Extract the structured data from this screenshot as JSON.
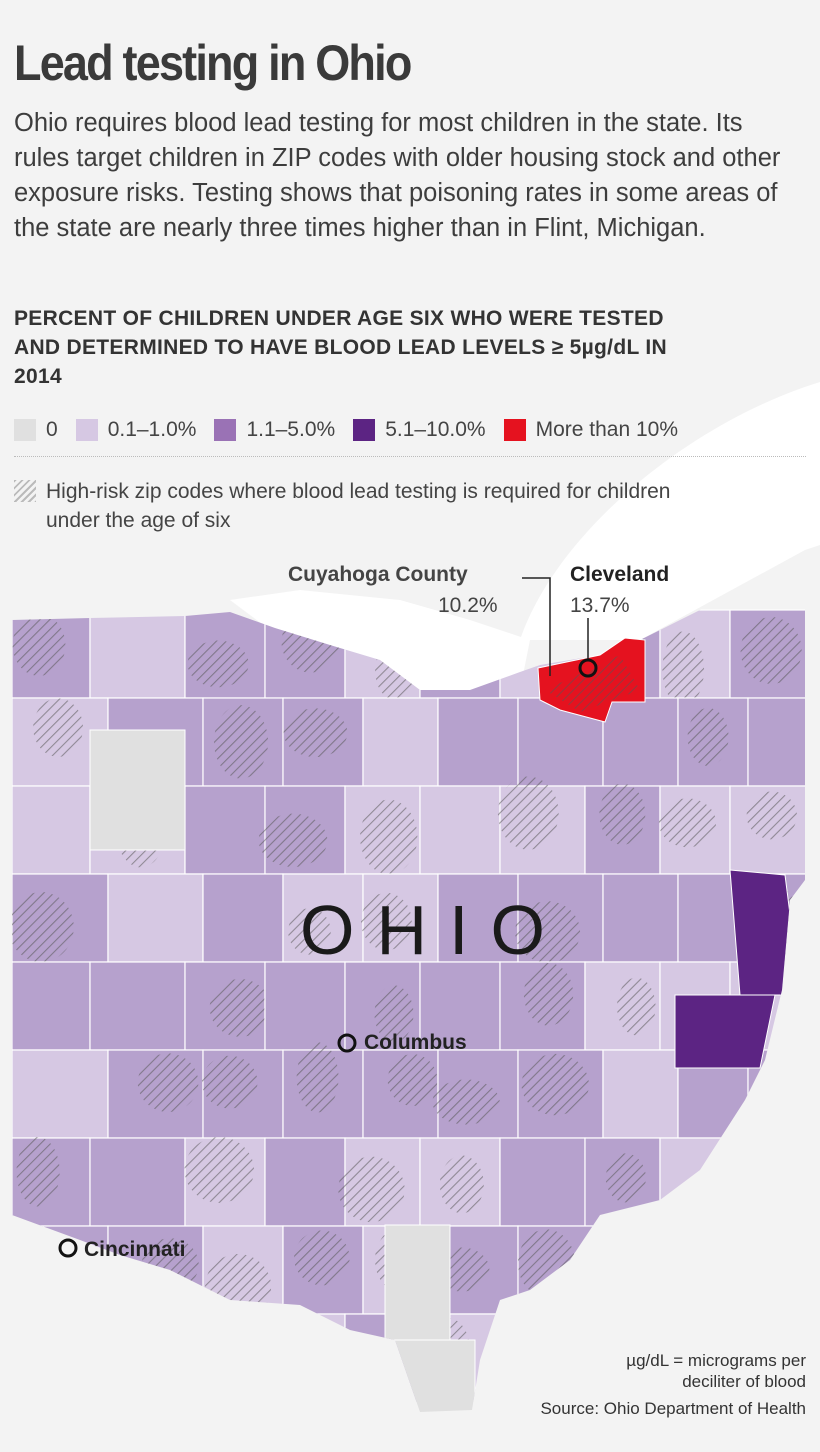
{
  "title": "Lead testing in Ohio",
  "intro": "Ohio requires blood lead testing for most children in the state. Its rules target children in ZIP codes with older housing stock and other exposure risks. Testing shows that poisoning rates in some areas of the state are nearly three times higher than in Flint, Michigan.",
  "subhead": "PERCENT OF CHILDREN UNDER AGE SIX WHO WERE TESTED AND DETERMINED TO HAVE BLOOD LEAD LEVELS ≥ 5µg/dL IN 2014",
  "legend": {
    "categories": [
      {
        "label": "0",
        "color": "#e0e0e0"
      },
      {
        "label": "0.1–1.0%",
        "color": "#d6c8e3"
      },
      {
        "label": "1.1–5.0%",
        "color": "#9a72b5"
      },
      {
        "label": "5.1–10.0%",
        "color": "#5c2483"
      },
      {
        "label": "More than 10%",
        "color": "#e5121f"
      }
    ],
    "hatch_label": "High-risk zip codes where blood lead testing is required for children under the age of six"
  },
  "map": {
    "state_label": "OHIO",
    "fill_colors": {
      "zero": "#e0e0e0",
      "low": "#d6c8e3",
      "mid": "#b6a1cd",
      "high": "#5c2483",
      "top": "#e5121f"
    },
    "annotations": {
      "cuyahoga": {
        "name": "Cuyahoga County",
        "value": "10.2%"
      },
      "cleveland": {
        "name": "Cleveland",
        "value": "13.7%"
      }
    },
    "cities": [
      "Columbus",
      "Cincinnati"
    ]
  },
  "footnote": {
    "units": "µg/dL = micrograms per deciliter of blood",
    "source": "Source: Ohio Department of Health"
  }
}
